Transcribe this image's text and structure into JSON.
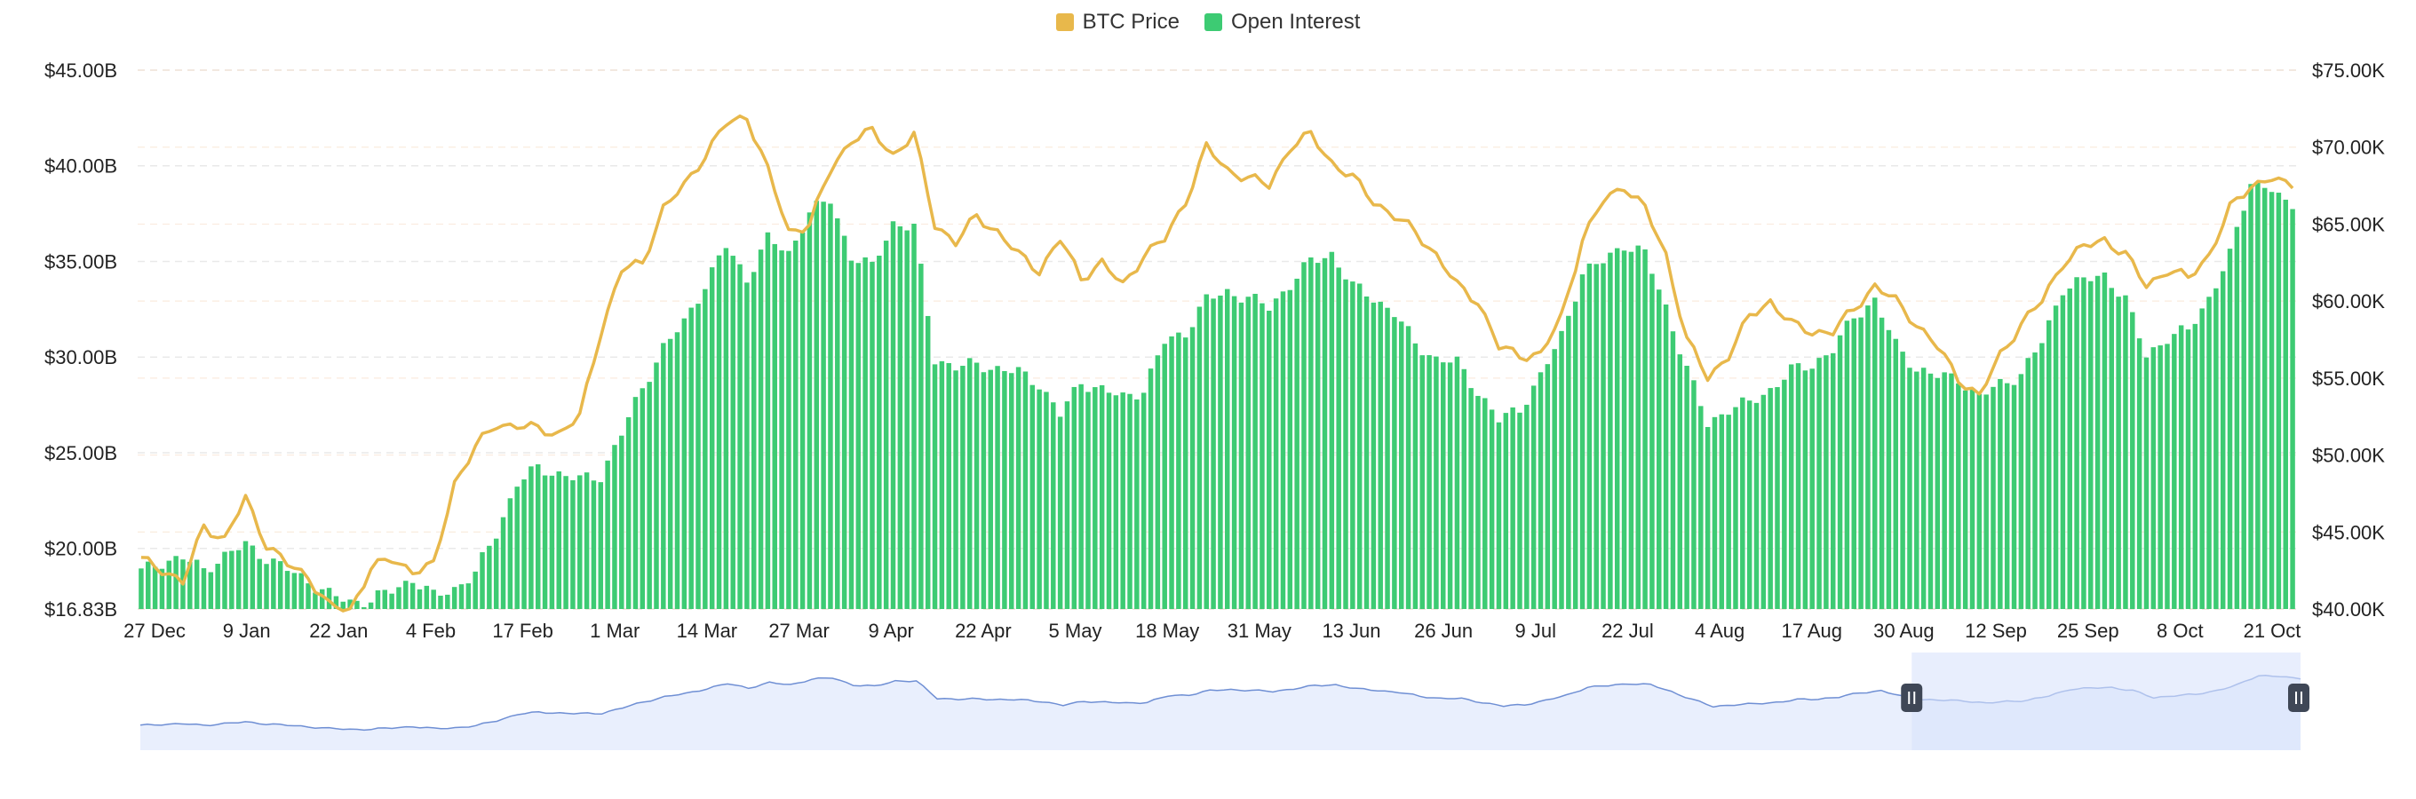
{
  "legend": [
    {
      "label": "BTC Price",
      "color": "#E8B84B"
    },
    {
      "label": "Open Interest",
      "color": "#3DCB73"
    }
  ],
  "chart_data": {
    "type": "bar+line",
    "x_tick_labels": [
      "27 Dec",
      "9 Jan",
      "22 Jan",
      "4 Feb",
      "17 Feb",
      "1 Mar",
      "14 Mar",
      "27 Mar",
      "9 Apr",
      "22 Apr",
      "5 May",
      "18 May",
      "31 May",
      "13 Jun",
      "26 Jun",
      "9 Jul",
      "22 Jul",
      "4 Aug",
      "17 Aug",
      "30 Aug",
      "12 Sep",
      "25 Sep",
      "8 Oct",
      "21 Oct"
    ],
    "left_axis": {
      "ticks": [
        "$45.00B",
        "$40.00B",
        "$35.00B",
        "$30.00B",
        "$25.00B",
        "$20.00B",
        "$16.83B"
      ],
      "min": 16.83,
      "max": 45.0,
      "unit": "B USD"
    },
    "right_axis": {
      "ticks": [
        "$75.00K",
        "$70.00K",
        "$65.00K",
        "$60.00K",
        "$55.00K",
        "$50.00K",
        "$45.00K",
        "$40.00K"
      ],
      "min": 40.0,
      "max": 75.0,
      "unit": "K USD"
    },
    "grid": true,
    "legend_position": "top-center",
    "series": [
      {
        "name": "Open Interest",
        "type": "bar",
        "axis": "left",
        "color": "#3DCB73",
        "keyframes": [
          [
            0,
            18.8
          ],
          [
            3,
            19.3
          ],
          [
            6,
            19.5
          ],
          [
            9,
            18.9
          ],
          [
            12,
            19.6
          ],
          [
            15,
            20.2
          ],
          [
            18,
            19.5
          ],
          [
            21,
            18.9
          ],
          [
            24,
            18.3
          ],
          [
            27,
            17.6
          ],
          [
            30,
            17.2
          ],
          [
            33,
            17.3
          ],
          [
            36,
            17.8
          ],
          [
            39,
            18.4
          ],
          [
            42,
            17.5
          ],
          [
            45,
            17.9
          ],
          [
            48,
            18.7
          ],
          [
            51,
            20.8
          ],
          [
            54,
            23.4
          ],
          [
            57,
            24.2
          ],
          [
            60,
            23.9
          ],
          [
            63,
            23.6
          ],
          [
            66,
            23.8
          ],
          [
            69,
            26.0
          ],
          [
            72,
            28.4
          ],
          [
            75,
            30.5
          ],
          [
            78,
            31.8
          ],
          [
            81,
            33.8
          ],
          [
            84,
            35.8
          ],
          [
            87,
            34.1
          ],
          [
            90,
            36.2
          ],
          [
            93,
            35.4
          ],
          [
            96,
            37.6
          ],
          [
            99,
            38.2
          ],
          [
            102,
            35.3
          ],
          [
            105,
            34.7
          ],
          [
            108,
            37.0
          ],
          [
            111,
            36.8
          ],
          [
            114,
            29.9
          ],
          [
            117,
            29.5
          ],
          [
            120,
            29.6
          ],
          [
            123,
            29.4
          ],
          [
            126,
            29.2
          ],
          [
            129,
            28.6
          ],
          [
            132,
            27.0
          ],
          [
            135,
            28.7
          ],
          [
            138,
            28.3
          ],
          [
            141,
            27.9
          ],
          [
            144,
            28.3
          ],
          [
            147,
            30.8
          ],
          [
            150,
            31.3
          ],
          [
            153,
            33.0
          ],
          [
            156,
            33.4
          ],
          [
            159,
            33.1
          ],
          [
            162,
            32.6
          ],
          [
            165,
            33.8
          ],
          [
            168,
            35.0
          ],
          [
            171,
            35.4
          ],
          [
            174,
            33.7
          ],
          [
            177,
            33.1
          ],
          [
            180,
            32.3
          ],
          [
            183,
            30.7
          ],
          [
            186,
            29.9
          ],
          [
            189,
            29.7
          ],
          [
            192,
            28.2
          ],
          [
            195,
            26.7
          ],
          [
            198,
            27.3
          ],
          [
            201,
            29.0
          ],
          [
            204,
            31.1
          ],
          [
            207,
            34.4
          ],
          [
            210,
            35.0
          ],
          [
            213,
            35.9
          ],
          [
            216,
            35.4
          ],
          [
            219,
            32.6
          ],
          [
            222,
            29.4
          ],
          [
            225,
            26.5
          ],
          [
            228,
            27.3
          ],
          [
            231,
            27.6
          ],
          [
            234,
            28.3
          ],
          [
            237,
            29.3
          ],
          [
            240,
            29.6
          ],
          [
            243,
            30.4
          ],
          [
            246,
            32.1
          ],
          [
            249,
            33.0
          ],
          [
            252,
            30.6
          ],
          [
            255,
            29.4
          ],
          [
            258,
            29.0
          ],
          [
            261,
            28.9
          ],
          [
            264,
            27.9
          ],
          [
            267,
            28.6
          ],
          [
            270,
            29.1
          ],
          [
            273,
            30.8
          ],
          [
            276,
            33.6
          ],
          [
            279,
            34.0
          ],
          [
            282,
            34.3
          ],
          [
            285,
            33.0
          ],
          [
            288,
            30.1
          ],
          [
            291,
            31.0
          ],
          [
            294,
            31.4
          ],
          [
            297,
            33.1
          ],
          [
            300,
            35.3
          ],
          [
            303,
            39.2
          ],
          [
            306,
            38.8
          ],
          [
            308,
            37.9
          ]
        ]
      },
      {
        "name": "BTC Price",
        "type": "line",
        "axis": "right",
        "color": "#E8B84B",
        "keyframes": [
          [
            0,
            43.2
          ],
          [
            3,
            42.6
          ],
          [
            6,
            41.7
          ],
          [
            9,
            45.4
          ],
          [
            12,
            44.5
          ],
          [
            15,
            47.2
          ],
          [
            18,
            44.2
          ],
          [
            21,
            42.9
          ],
          [
            24,
            42.1
          ],
          [
            27,
            40.2
          ],
          [
            30,
            39.9
          ],
          [
            33,
            42.7
          ],
          [
            36,
            43.2
          ],
          [
            39,
            42.5
          ],
          [
            42,
            42.8
          ],
          [
            45,
            48.2
          ],
          [
            48,
            50.5
          ],
          [
            51,
            52.0
          ],
          [
            54,
            51.9
          ],
          [
            57,
            51.7
          ],
          [
            60,
            51.4
          ],
          [
            63,
            52.5
          ],
          [
            66,
            58.0
          ],
          [
            69,
            62.0
          ],
          [
            72,
            62.5
          ],
          [
            75,
            66.0
          ],
          [
            78,
            67.5
          ],
          [
            81,
            69.5
          ],
          [
            84,
            71.5
          ],
          [
            87,
            72.0
          ],
          [
            90,
            68.5
          ],
          [
            93,
            64.5
          ],
          [
            96,
            65.0
          ],
          [
            99,
            68.5
          ],
          [
            102,
            70.5
          ],
          [
            105,
            71.0
          ],
          [
            108,
            69.5
          ],
          [
            111,
            70.8
          ],
          [
            114,
            65.0
          ],
          [
            117,
            63.8
          ],
          [
            120,
            65.5
          ],
          [
            123,
            64.5
          ],
          [
            126,
            63.0
          ],
          [
            129,
            62.0
          ],
          [
            132,
            64.0
          ],
          [
            135,
            61.5
          ],
          [
            138,
            62.5
          ],
          [
            141,
            61.0
          ],
          [
            144,
            63.0
          ],
          [
            147,
            64.0
          ],
          [
            150,
            66.5
          ],
          [
            153,
            70.0
          ],
          [
            156,
            68.5
          ],
          [
            159,
            68.0
          ],
          [
            162,
            67.5
          ],
          [
            165,
            70.0
          ],
          [
            168,
            70.8
          ],
          [
            171,
            69.0
          ],
          [
            174,
            68.0
          ],
          [
            177,
            66.5
          ],
          [
            180,
            65.5
          ],
          [
            183,
            64.5
          ],
          [
            186,
            63.0
          ],
          [
            189,
            61.0
          ],
          [
            192,
            60.0
          ],
          [
            195,
            57.0
          ],
          [
            198,
            56.5
          ],
          [
            201,
            56.5
          ],
          [
            204,
            59.0
          ],
          [
            207,
            64.0
          ],
          [
            210,
            66.5
          ],
          [
            213,
            67.5
          ],
          [
            216,
            66.0
          ],
          [
            219,
            63.0
          ],
          [
            222,
            57.5
          ],
          [
            225,
            55.0
          ],
          [
            228,
            56.5
          ],
          [
            231,
            59.0
          ],
          [
            234,
            60.0
          ],
          [
            237,
            58.5
          ],
          [
            240,
            58.0
          ],
          [
            243,
            58.0
          ],
          [
            246,
            59.5
          ],
          [
            249,
            61.0
          ],
          [
            252,
            60.0
          ],
          [
            255,
            58.5
          ],
          [
            258,
            57.0
          ],
          [
            261,
            55.0
          ],
          [
            264,
            53.8
          ],
          [
            267,
            56.5
          ],
          [
            270,
            58.5
          ],
          [
            273,
            60.0
          ],
          [
            276,
            62.5
          ],
          [
            279,
            63.5
          ],
          [
            282,
            64.0
          ],
          [
            285,
            63.0
          ],
          [
            288,
            61.0
          ],
          [
            291,
            62.0
          ],
          [
            294,
            61.5
          ],
          [
            297,
            63.0
          ],
          [
            300,
            66.0
          ],
          [
            303,
            67.5
          ],
          [
            306,
            68.0
          ],
          [
            308,
            67.5
          ]
        ]
      }
    ],
    "navigator": {
      "handle_icons": [
        "grip-icon",
        "grip-icon"
      ],
      "selected_range_start_fraction": 0.82,
      "selected_range_end_fraction": 1.0,
      "fill_color": "#D8E3FB",
      "line_color": "#6F8FD4"
    }
  }
}
